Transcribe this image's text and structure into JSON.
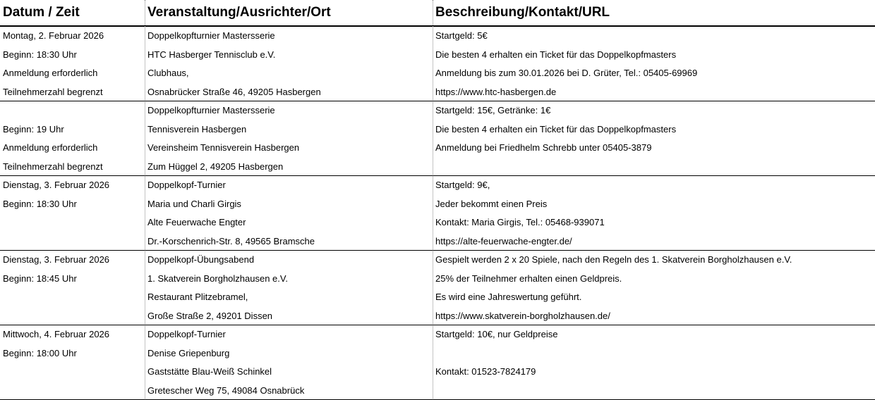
{
  "table": {
    "header": [
      "Datum / Zeit",
      "Veranstaltung/Ausrichter/Ort",
      "Beschreibung/Kontakt/URL"
    ],
    "rows": [
      [
        [
          "Montag, 2. Februar 2026",
          "Beginn: 18:30 Uhr",
          "Anmeldung erforderlich",
          "Teilnehmerzahl begrenzt"
        ],
        [
          "Doppelkopfturnier Mastersserie",
          "HTC Hasberger Tennisclub e.V.",
          "Clubhaus,",
          "Osnabrücker Straße 46, 49205 Hasbergen"
        ],
        [
          "Startgeld: 5€",
          "Die besten 4 erhalten ein Ticket für das Doppelkopfmasters",
          "Anmeldung bis zum 30.01.2026 bei D. Grüter, Tel.: 05405-69969",
          "https://www.htc-hasbergen.de"
        ]
      ],
      [
        [
          null,
          "Beginn: 19 Uhr",
          "Anmeldung erforderlich",
          "Teilnehmerzahl begrenzt"
        ],
        [
          "Doppelkopfturnier Mastersserie",
          "Tennisverein Hasbergen",
          "Vereinsheim Tennisverein Hasbergen",
          "Zum Hüggel 2, 49205 Hasbergen"
        ],
        [
          "Startgeld: 15€, Getränke: 1€",
          "Die besten 4 erhalten ein Ticket für das Doppelkopfmasters",
          "Anmeldung bei Friedhelm Schrebb unter 05405-3879",
          null
        ]
      ],
      [
        [
          "Dienstag, 3. Februar 2026",
          "Beginn: 18:30 Uhr",
          null,
          null
        ],
        [
          "Doppelkopf-Turnier",
          "Maria  und Charli Girgis",
          "Alte Feuerwache Engter",
          "Dr.-Korschenrich-Str. 8, 49565 Bramsche"
        ],
        [
          "Startgeld: 9€,",
          "Jeder bekommt einen Preis",
          "Kontakt: Maria Girgis, Tel.: 05468-939071",
          "https://alte-feuerwache-engter.de/"
        ]
      ],
      [
        [
          "Dienstag, 3. Februar 2026",
          "Beginn: 18:45 Uhr",
          null,
          null
        ],
        [
          "Doppelkopf-Übungsabend",
          "1. Skatverein Borgholzhausen e.V.",
          "Restaurant Plitzebramel,",
          "Große Straße 2, 49201 Dissen"
        ],
        [
          "Gespielt werden 2 x 20 Spiele, nach den Regeln des 1. Skatverein Borgholzhausen e.V.",
          "25% der Teilnehmer erhalten einen Geldpreis.",
          "Es wird eine Jahreswertung geführt.",
          "https://www.skatverein-borgholzhausen.de/"
        ]
      ],
      [
        [
          "Mittwoch, 4. Februar 2026",
          "Beginn: 18:00 Uhr",
          null,
          null
        ],
        [
          "Doppelkopf-Turnier",
          "Denise Griepenburg",
          "Gaststätte Blau-Weiß Schinkel",
          "Gretescher Weg 75, 49084 Osnabrück"
        ],
        [
          "Startgeld: 10€, nur Geldpreise",
          null,
          "Kontakt: 01523-7824179",
          null
        ]
      ]
    ]
  }
}
